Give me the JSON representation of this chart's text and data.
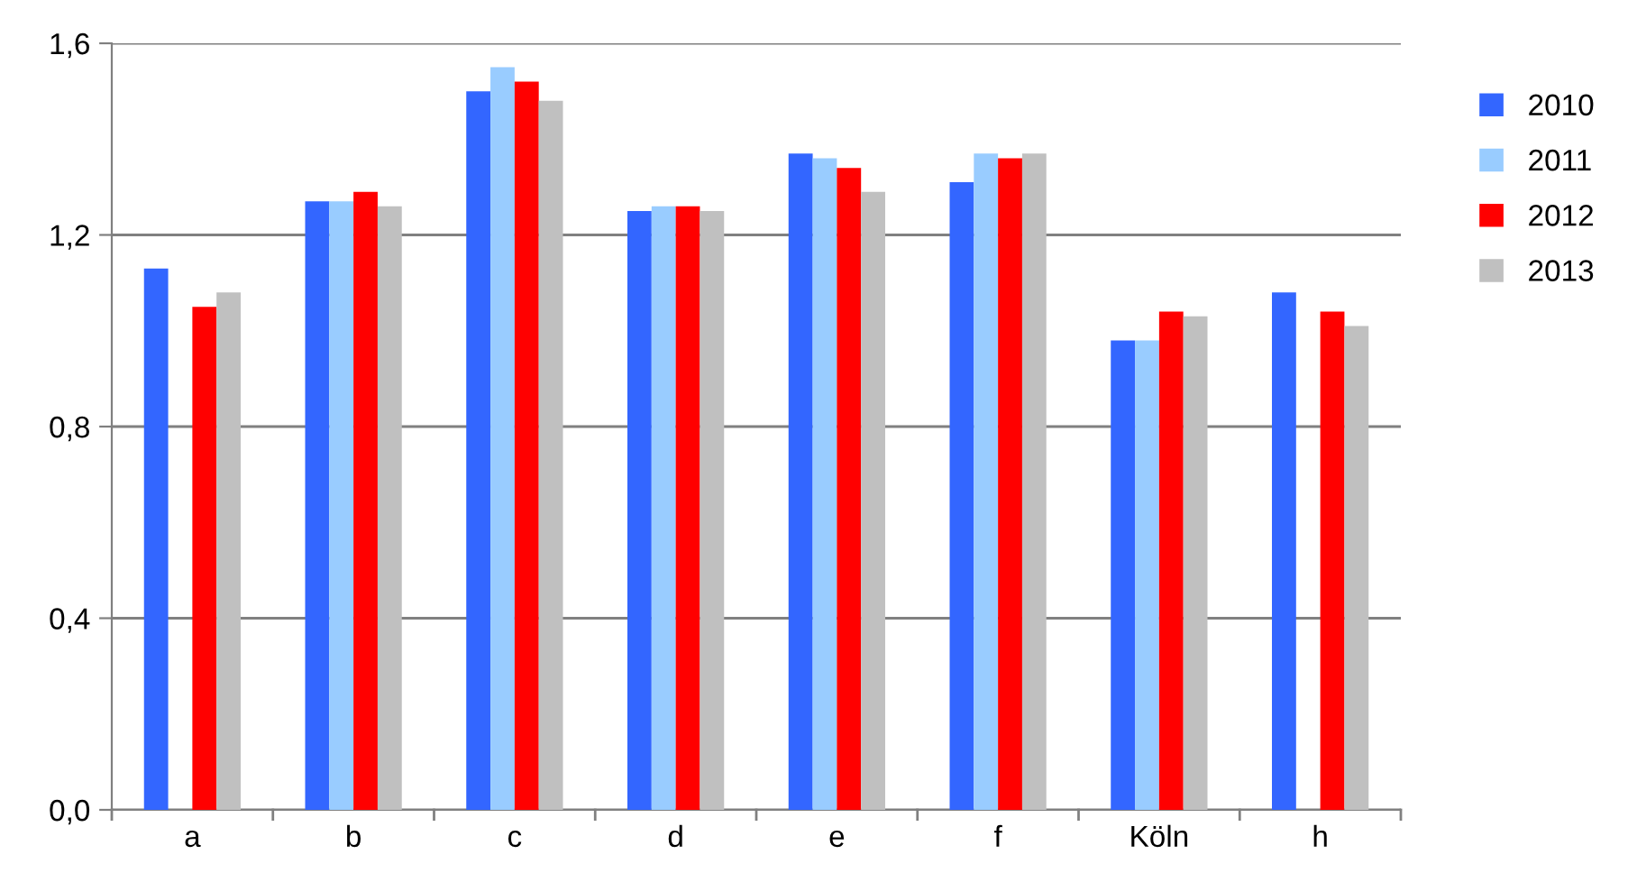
{
  "chart_data": {
    "type": "bar",
    "categories": [
      "a",
      "b",
      "c",
      "d",
      "e",
      "f",
      "Köln",
      "h"
    ],
    "series": [
      {
        "name": "2010",
        "color": "#3366ff",
        "values": [
          1.13,
          1.27,
          1.5,
          1.25,
          1.37,
          1.31,
          0.98,
          1.08
        ]
      },
      {
        "name": "2011",
        "color": "#99ccff",
        "values": [
          null,
          1.27,
          1.55,
          1.26,
          1.36,
          1.37,
          0.98,
          null
        ]
      },
      {
        "name": "2012",
        "color": "#ff0000",
        "values": [
          1.05,
          1.29,
          1.52,
          1.26,
          1.34,
          1.36,
          1.04,
          1.04
        ]
      },
      {
        "name": "2013",
        "color": "#c0c0c0",
        "values": [
          1.08,
          1.26,
          1.48,
          1.25,
          1.29,
          1.37,
          1.03,
          1.01
        ]
      }
    ],
    "ylim": [
      0,
      1.6
    ],
    "yticks": [
      {
        "value": 0,
        "label": "0,0"
      },
      {
        "value": 0.4,
        "label": "0,4"
      },
      {
        "value": 0.8,
        "label": "0,8"
      },
      {
        "value": 1.2,
        "label": "1,2"
      },
      {
        "value": 1.6,
        "label": "1,6"
      }
    ],
    "grid": "y",
    "legend": "right"
  }
}
